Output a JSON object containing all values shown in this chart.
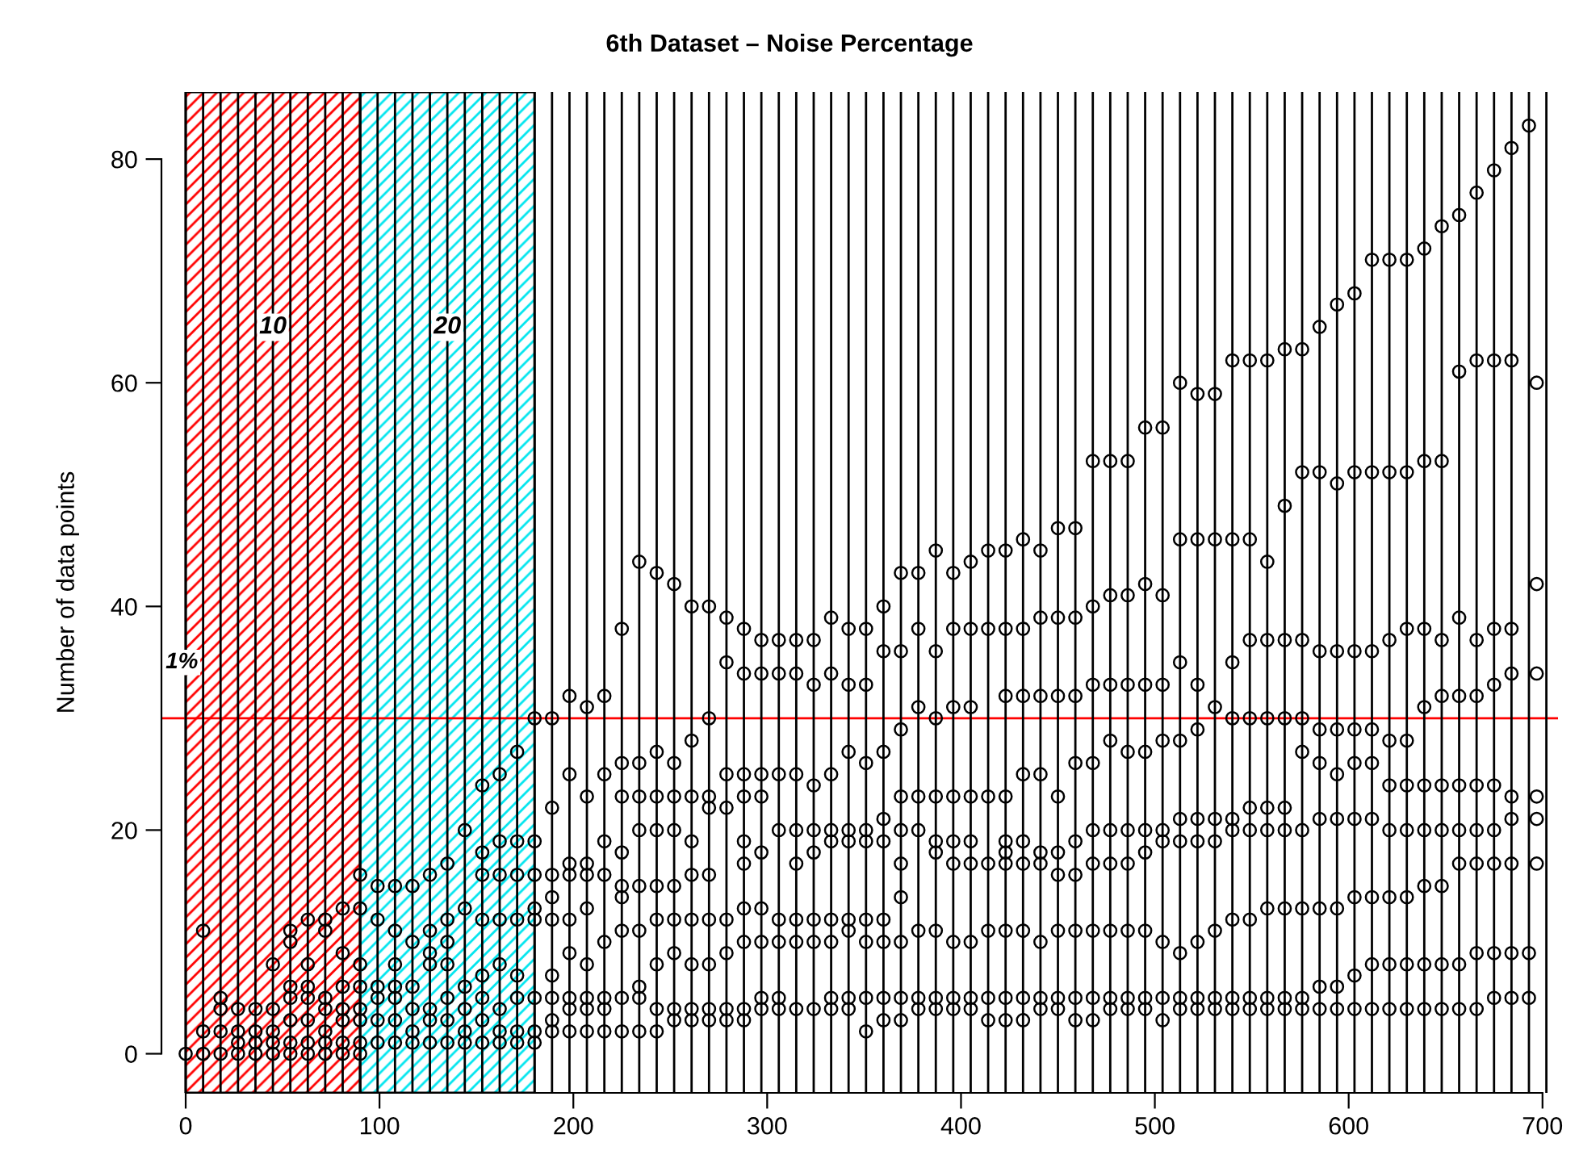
{
  "chart_data": {
    "type": "scatter",
    "title": "6th Dataset – Noise Percentage",
    "ylabel": "Number of data points",
    "xlim": [
      -12.5,
      708
    ],
    "ylim": [
      -3.5,
      86
    ],
    "xticks": [
      0,
      100,
      200,
      300,
      400,
      500,
      600,
      700
    ],
    "yticks": [
      0,
      20,
      40,
      60,
      80
    ],
    "marker": "circle",
    "series": [
      {
        "color": "#000000",
        "x": [
          0,
          9,
          9,
          9,
          18,
          18,
          18,
          18,
          27,
          27,
          27,
          27,
          36,
          36,
          36,
          36,
          45,
          45,
          45,
          45,
          45,
          54,
          54,
          54,
          54,
          54,
          54,
          54,
          63,
          63,
          63,
          63,
          63,
          63,
          63,
          72,
          72,
          72,
          72,
          72,
          72,
          72,
          81,
          81,
          81,
          81,
          81,
          81,
          81,
          90,
          90,
          90,
          90,
          90,
          90,
          90,
          90,
          99,
          99,
          99,
          99,
          99,
          99,
          108,
          108,
          108,
          108,
          108,
          108,
          108,
          117,
          117,
          117,
          117,
          117,
          117,
          126,
          126,
          126,
          126,
          126,
          126,
          126,
          135,
          135,
          135,
          135,
          135,
          135,
          135,
          144,
          144,
          144,
          144,
          144,
          144,
          153,
          153,
          153,
          153,
          153,
          153,
          153,
          153,
          162,
          162,
          162,
          162,
          162,
          162,
          162,
          162,
          171,
          171,
          171,
          171,
          171,
          171,
          171,
          171,
          180,
          180,
          180,
          180,
          180,
          180,
          180,
          180,
          189,
          189,
          189,
          189,
          189,
          189,
          189,
          189,
          189,
          198,
          198,
          198,
          198,
          198,
          198,
          198,
          198,
          198,
          207,
          207,
          207,
          207,
          207,
          207,
          207,
          207,
          207,
          216,
          216,
          216,
          216,
          216,
          216,
          216,
          216,
          225,
          225,
          225,
          225,
          225,
          225,
          225,
          225,
          225,
          234,
          234,
          234,
          234,
          234,
          234,
          234,
          234,
          234,
          243,
          243,
          243,
          243,
          243,
          243,
          243,
          243,
          243,
          252,
          252,
          252,
          252,
          252,
          252,
          252,
          252,
          252,
          261,
          261,
          261,
          261,
          261,
          261,
          261,
          261,
          261,
          270,
          270,
          270,
          270,
          270,
          270,
          270,
          270,
          270,
          279,
          279,
          279,
          279,
          279,
          279,
          279,
          279,
          288,
          288,
          288,
          288,
          288,
          288,
          288,
          288,
          288,
          288,
          297,
          297,
          297,
          297,
          297,
          297,
          297,
          297,
          297,
          306,
          306,
          306,
          306,
          306,
          306,
          306,
          306,
          315,
          315,
          315,
          315,
          315,
          315,
          315,
          315,
          324,
          324,
          324,
          324,
          324,
          324,
          324,
          324,
          333,
          333,
          333,
          333,
          333,
          333,
          333,
          333,
          333,
          342,
          342,
          342,
          342,
          342,
          342,
          342,
          342,
          342,
          351,
          351,
          351,
          351,
          351,
          351,
          351,
          351,
          351,
          360,
          360,
          360,
          360,
          360,
          360,
          360,
          360,
          360,
          369,
          369,
          369,
          369,
          369,
          369,
          369,
          369,
          369,
          369,
          378,
          378,
          378,
          378,
          378,
          378,
          378,
          378,
          387,
          387,
          387,
          387,
          387,
          387,
          387,
          387,
          387,
          396,
          396,
          396,
          396,
          396,
          396,
          396,
          396,
          396,
          405,
          405,
          405,
          405,
          405,
          405,
          405,
          405,
          405,
          414,
          414,
          414,
          414,
          414,
          414,
          414,
          423,
          423,
          423,
          423,
          423,
          423,
          423,
          423,
          423,
          423,
          432,
          432,
          432,
          432,
          432,
          432,
          432,
          432,
          432,
          441,
          441,
          441,
          441,
          441,
          441,
          441,
          441,
          441,
          450,
          450,
          450,
          450,
          450,
          450,
          450,
          450,
          450,
          459,
          459,
          459,
          459,
          459,
          459,
          459,
          459,
          459,
          468,
          468,
          468,
          468,
          468,
          468,
          468,
          468,
          468,
          477,
          477,
          477,
          477,
          477,
          477,
          477,
          477,
          477,
          486,
          486,
          486,
          486,
          486,
          486,
          486,
          486,
          486,
          495,
          495,
          495,
          495,
          495,
          495,
          495,
          495,
          495,
          504,
          504,
          504,
          504,
          504,
          504,
          504,
          504,
          504,
          513,
          513,
          513,
          513,
          513,
          513,
          513,
          513,
          513,
          522,
          522,
          522,
          522,
          522,
          522,
          522,
          522,
          522,
          531,
          531,
          531,
          531,
          531,
          531,
          531,
          531,
          540,
          540,
          540,
          540,
          540,
          540,
          540,
          540,
          540,
          549,
          549,
          549,
          549,
          549,
          549,
          549,
          549,
          549,
          558,
          558,
          558,
          558,
          558,
          558,
          558,
          558,
          558,
          567,
          567,
          567,
          567,
          567,
          567,
          567,
          567,
          567,
          576,
          576,
          576,
          576,
          576,
          576,
          576,
          576,
          576,
          585,
          585,
          585,
          585,
          585,
          585,
          585,
          585,
          585,
          594,
          594,
          594,
          594,
          594,
          594,
          594,
          594,
          594,
          603,
          603,
          603,
          603,
          603,
          603,
          603,
          603,
          603,
          612,
          612,
          612,
          612,
          612,
          612,
          612,
          612,
          612,
          621,
          621,
          621,
          621,
          621,
          621,
          621,
          621,
          621,
          630,
          630,
          630,
          630,
          630,
          630,
          630,
          630,
          630,
          639,
          639,
          639,
          639,
          639,
          639,
          639,
          639,
          639,
          648,
          648,
          648,
          648,
          648,
          648,
          648,
          648,
          648,
          657,
          657,
          657,
          657,
          657,
          657,
          657,
          657,
          657,
          666,
          666,
          666,
          666,
          666,
          666,
          666,
          666,
          666,
          675,
          675,
          675,
          675,
          675,
          675,
          675,
          675,
          675,
          684,
          684,
          684,
          684,
          684,
          684,
          684,
          684,
          684,
          693,
          693,
          693,
          697,
          697,
          697,
          697,
          697,
          697
        ],
        "values": [
          0,
          0,
          2,
          11,
          0,
          2,
          4,
          5,
          0,
          1,
          2,
          4,
          0,
          1,
          2,
          4,
          0,
          1,
          2,
          4,
          8,
          0,
          1,
          3,
          5,
          6,
          10,
          11,
          0,
          1,
          3,
          5,
          6,
          8,
          12,
          0,
          1,
          2,
          4,
          5,
          11,
          12,
          0,
          1,
          3,
          4,
          6,
          9,
          13,
          0,
          1,
          3,
          4,
          6,
          8,
          13,
          16,
          1,
          3,
          5,
          6,
          12,
          15,
          1,
          3,
          5,
          6,
          8,
          11,
          15,
          1,
          2,
          4,
          6,
          10,
          15,
          1,
          3,
          4,
          8,
          9,
          11,
          16,
          1,
          3,
          5,
          8,
          10,
          12,
          17,
          1,
          2,
          4,
          6,
          13,
          20,
          1,
          3,
          5,
          7,
          12,
          16,
          18,
          24,
          1,
          2,
          4,
          8,
          12,
          16,
          19,
          25,
          1,
          2,
          5,
          7,
          12,
          16,
          19,
          27,
          1,
          2,
          5,
          12,
          13,
          16,
          19,
          30,
          2,
          3,
          5,
          7,
          12,
          14,
          16,
          22,
          30,
          2,
          4,
          5,
          9,
          12,
          16,
          17,
          25,
          32,
          2,
          4,
          5,
          8,
          13,
          16,
          17,
          23,
          31,
          2,
          4,
          5,
          10,
          16,
          19,
          25,
          32,
          2,
          5,
          11,
          14,
          15,
          18,
          23,
          26,
          38,
          2,
          5,
          6,
          11,
          15,
          20,
          23,
          26,
          44,
          2,
          4,
          8,
          12,
          15,
          20,
          23,
          27,
          43,
          3,
          4,
          9,
          12,
          15,
          20,
          23,
          26,
          42,
          3,
          4,
          8,
          12,
          16,
          19,
          23,
          28,
          40,
          3,
          4,
          8,
          12,
          16,
          22,
          23,
          30,
          40,
          3,
          4,
          9,
          12,
          22,
          25,
          35,
          39,
          3,
          4,
          10,
          13,
          17,
          19,
          23,
          25,
          34,
          38,
          4,
          5,
          10,
          13,
          18,
          23,
          25,
          34,
          37,
          4,
          5,
          10,
          12,
          20,
          25,
          34,
          37,
          4,
          10,
          12,
          17,
          20,
          25,
          34,
          37,
          4,
          10,
          12,
          18,
          20,
          24,
          33,
          37,
          4,
          5,
          10,
          12,
          19,
          20,
          25,
          34,
          39,
          4,
          5,
          11,
          12,
          19,
          20,
          27,
          33,
          38,
          2,
          5,
          10,
          12,
          19,
          20,
          26,
          33,
          38,
          3,
          5,
          10,
          12,
          19,
          21,
          27,
          36,
          40,
          3,
          5,
          10,
          14,
          17,
          20,
          23,
          29,
          36,
          43,
          4,
          5,
          11,
          20,
          23,
          31,
          38,
          43,
          4,
          5,
          11,
          18,
          19,
          23,
          30,
          36,
          45,
          4,
          5,
          10,
          17,
          19,
          23,
          31,
          38,
          43,
          4,
          5,
          10,
          17,
          19,
          23,
          31,
          38,
          44,
          3,
          5,
          11,
          17,
          23,
          38,
          45,
          3,
          5,
          11,
          17,
          18,
          19,
          23,
          32,
          38,
          45,
          3,
          5,
          11,
          17,
          19,
          25,
          32,
          38,
          46,
          4,
          5,
          10,
          17,
          18,
          25,
          32,
          39,
          45,
          4,
          5,
          11,
          16,
          18,
          23,
          32,
          39,
          47,
          3,
          5,
          11,
          16,
          19,
          26,
          32,
          39,
          47,
          3,
          5,
          11,
          17,
          20,
          26,
          33,
          40,
          53,
          4,
          5,
          11,
          17,
          20,
          28,
          33,
          41,
          53,
          4,
          5,
          11,
          17,
          20,
          27,
          33,
          41,
          53,
          4,
          5,
          11,
          18,
          20,
          27,
          33,
          42,
          56,
          3,
          5,
          10,
          19,
          20,
          28,
          33,
          41,
          56,
          4,
          5,
          9,
          19,
          21,
          28,
          35,
          46,
          60,
          4,
          5,
          10,
          19,
          21,
          29,
          33,
          46,
          59,
          4,
          5,
          11,
          19,
          21,
          31,
          46,
          59,
          4,
          5,
          12,
          20,
          21,
          30,
          35,
          46,
          62,
          4,
          5,
          12,
          20,
          22,
          30,
          37,
          46,
          62,
          4,
          5,
          13,
          20,
          22,
          30,
          37,
          44,
          62,
          4,
          5,
          13,
          20,
          22,
          30,
          37,
          49,
          63,
          4,
          5,
          13,
          20,
          27,
          30,
          37,
          52,
          63,
          4,
          6,
          13,
          21,
          26,
          29,
          36,
          52,
          65,
          4,
          6,
          13,
          21,
          25,
          29,
          36,
          51,
          67,
          4,
          7,
          14,
          21,
          26,
          29,
          36,
          52,
          68,
          4,
          8,
          14,
          21,
          26,
          29,
          36,
          52,
          71,
          4,
          8,
          14,
          20,
          24,
          28,
          37,
          52,
          71,
          4,
          8,
          14,
          20,
          24,
          28,
          38,
          52,
          71,
          4,
          8,
          15,
          20,
          24,
          31,
          38,
          53,
          72,
          4,
          8,
          15,
          20,
          24,
          32,
          37,
          53,
          74,
          4,
          8,
          17,
          20,
          24,
          32,
          39,
          61,
          75,
          4,
          9,
          17,
          20,
          24,
          32,
          37,
          62,
          77,
          5,
          9,
          17,
          20,
          24,
          33,
          38,
          62,
          79,
          5,
          9,
          17,
          21,
          23,
          34,
          38,
          62,
          81,
          5,
          9,
          83,
          17,
          21,
          23,
          34,
          42,
          60
        ]
      }
    ],
    "bands": [
      {
        "axis": "x",
        "from": 0,
        "to": 90,
        "label": "10",
        "color": "#ff0000"
      },
      {
        "axis": "x",
        "from": 90,
        "to": 180,
        "label": "20",
        "color": "#00e5ee"
      }
    ],
    "annotations": [
      "1%"
    ],
    "ref_lines": [
      {
        "axis": "y",
        "value": 30,
        "color": "#ff0000"
      },
      {
        "axis": "x",
        "value": 0,
        "color": "#000000"
      },
      {
        "axis": "x",
        "value": 9,
        "color": "#000000"
      },
      {
        "axis": "x",
        "value": 18,
        "color": "#000000"
      },
      {
        "axis": "x",
        "value": 27,
        "color": "#000000"
      },
      {
        "axis": "x",
        "value": 36,
        "color": "#000000"
      },
      {
        "axis": "x",
        "value": 45,
        "color": "#000000"
      },
      {
        "axis": "x",
        "value": 54,
        "color": "#000000"
      },
      {
        "axis": "x",
        "value": 63,
        "color": "#000000"
      },
      {
        "axis": "x",
        "value": 72,
        "color": "#000000"
      },
      {
        "axis": "x",
        "value": 81,
        "color": "#000000"
      },
      {
        "axis": "x",
        "value": 90,
        "color": "#000000"
      },
      {
        "axis": "x",
        "value": 99,
        "color": "#000000"
      },
      {
        "axis": "x",
        "value": 108,
        "color": "#000000"
      },
      {
        "axis": "x",
        "value": 117,
        "color": "#000000"
      },
      {
        "axis": "x",
        "value": 126,
        "color": "#000000"
      },
      {
        "axis": "x",
        "value": 135,
        "color": "#000000"
      },
      {
        "axis": "x",
        "value": 144,
        "color": "#000000"
      },
      {
        "axis": "x",
        "value": 153,
        "color": "#000000"
      },
      {
        "axis": "x",
        "value": 162,
        "color": "#000000"
      },
      {
        "axis": "x",
        "value": 171,
        "color": "#000000"
      },
      {
        "axis": "x",
        "value": 180,
        "color": "#000000"
      },
      {
        "axis": "x",
        "value": 189,
        "color": "#000000"
      },
      {
        "axis": "x",
        "value": 198,
        "color": "#000000"
      },
      {
        "axis": "x",
        "value": 207,
        "color": "#000000"
      },
      {
        "axis": "x",
        "value": 216,
        "color": "#000000"
      },
      {
        "axis": "x",
        "value": 225,
        "color": "#000000"
      },
      {
        "axis": "x",
        "value": 234,
        "color": "#000000"
      },
      {
        "axis": "x",
        "value": 243,
        "color": "#000000"
      },
      {
        "axis": "x",
        "value": 252,
        "color": "#000000"
      },
      {
        "axis": "x",
        "value": 261,
        "color": "#000000"
      },
      {
        "axis": "x",
        "value": 270,
        "color": "#000000"
      },
      {
        "axis": "x",
        "value": 279,
        "color": "#000000"
      },
      {
        "axis": "x",
        "value": 288,
        "color": "#000000"
      },
      {
        "axis": "x",
        "value": 297,
        "color": "#000000"
      },
      {
        "axis": "x",
        "value": 306,
        "color": "#000000"
      },
      {
        "axis": "x",
        "value": 315,
        "color": "#000000"
      },
      {
        "axis": "x",
        "value": 324,
        "color": "#000000"
      },
      {
        "axis": "x",
        "value": 333,
        "color": "#000000"
      },
      {
        "axis": "x",
        "value": 342,
        "color": "#000000"
      },
      {
        "axis": "x",
        "value": 351,
        "color": "#000000"
      },
      {
        "axis": "x",
        "value": 360,
        "color": "#000000"
      },
      {
        "axis": "x",
        "value": 369,
        "color": "#000000"
      },
      {
        "axis": "x",
        "value": 378,
        "color": "#000000"
      },
      {
        "axis": "x",
        "value": 387,
        "color": "#000000"
      },
      {
        "axis": "x",
        "value": 396,
        "color": "#000000"
      },
      {
        "axis": "x",
        "value": 405,
        "color": "#000000"
      },
      {
        "axis": "x",
        "value": 414,
        "color": "#000000"
      },
      {
        "axis": "x",
        "value": 423,
        "color": "#000000"
      },
      {
        "axis": "x",
        "value": 432,
        "color": "#000000"
      },
      {
        "axis": "x",
        "value": 441,
        "color": "#000000"
      },
      {
        "axis": "x",
        "value": 450,
        "color": "#000000"
      },
      {
        "axis": "x",
        "value": 459,
        "color": "#000000"
      },
      {
        "axis": "x",
        "value": 468,
        "color": "#000000"
      },
      {
        "axis": "x",
        "value": 477,
        "color": "#000000"
      },
      {
        "axis": "x",
        "value": 486,
        "color": "#000000"
      },
      {
        "axis": "x",
        "value": 495,
        "color": "#000000"
      },
      {
        "axis": "x",
        "value": 504,
        "color": "#000000"
      },
      {
        "axis": "x",
        "value": 513,
        "color": "#000000"
      },
      {
        "axis": "x",
        "value": 522,
        "color": "#000000"
      },
      {
        "axis": "x",
        "value": 531,
        "color": "#000000"
      },
      {
        "axis": "x",
        "value": 540,
        "color": "#000000"
      },
      {
        "axis": "x",
        "value": 549,
        "color": "#000000"
      },
      {
        "axis": "x",
        "value": 558,
        "color": "#000000"
      },
      {
        "axis": "x",
        "value": 567,
        "color": "#000000"
      },
      {
        "axis": "x",
        "value": 576,
        "color": "#000000"
      },
      {
        "axis": "x",
        "value": 585,
        "color": "#000000"
      },
      {
        "axis": "x",
        "value": 594,
        "color": "#000000"
      },
      {
        "axis": "x",
        "value": 603,
        "color": "#000000"
      },
      {
        "axis": "x",
        "value": 612,
        "color": "#000000"
      },
      {
        "axis": "x",
        "value": 621,
        "color": "#000000"
      },
      {
        "axis": "x",
        "value": 630,
        "color": "#000000"
      },
      {
        "axis": "x",
        "value": 639,
        "color": "#000000"
      },
      {
        "axis": "x",
        "value": 648,
        "color": "#000000"
      },
      {
        "axis": "x",
        "value": 657,
        "color": "#000000"
      },
      {
        "axis": "x",
        "value": 666,
        "color": "#000000"
      },
      {
        "axis": "x",
        "value": 675,
        "color": "#000000"
      },
      {
        "axis": "x",
        "value": 684,
        "color": "#000000"
      },
      {
        "axis": "x",
        "value": 693,
        "color": "#000000"
      },
      {
        "axis": "x",
        "value": 702,
        "color": "#000000"
      }
    ]
  }
}
